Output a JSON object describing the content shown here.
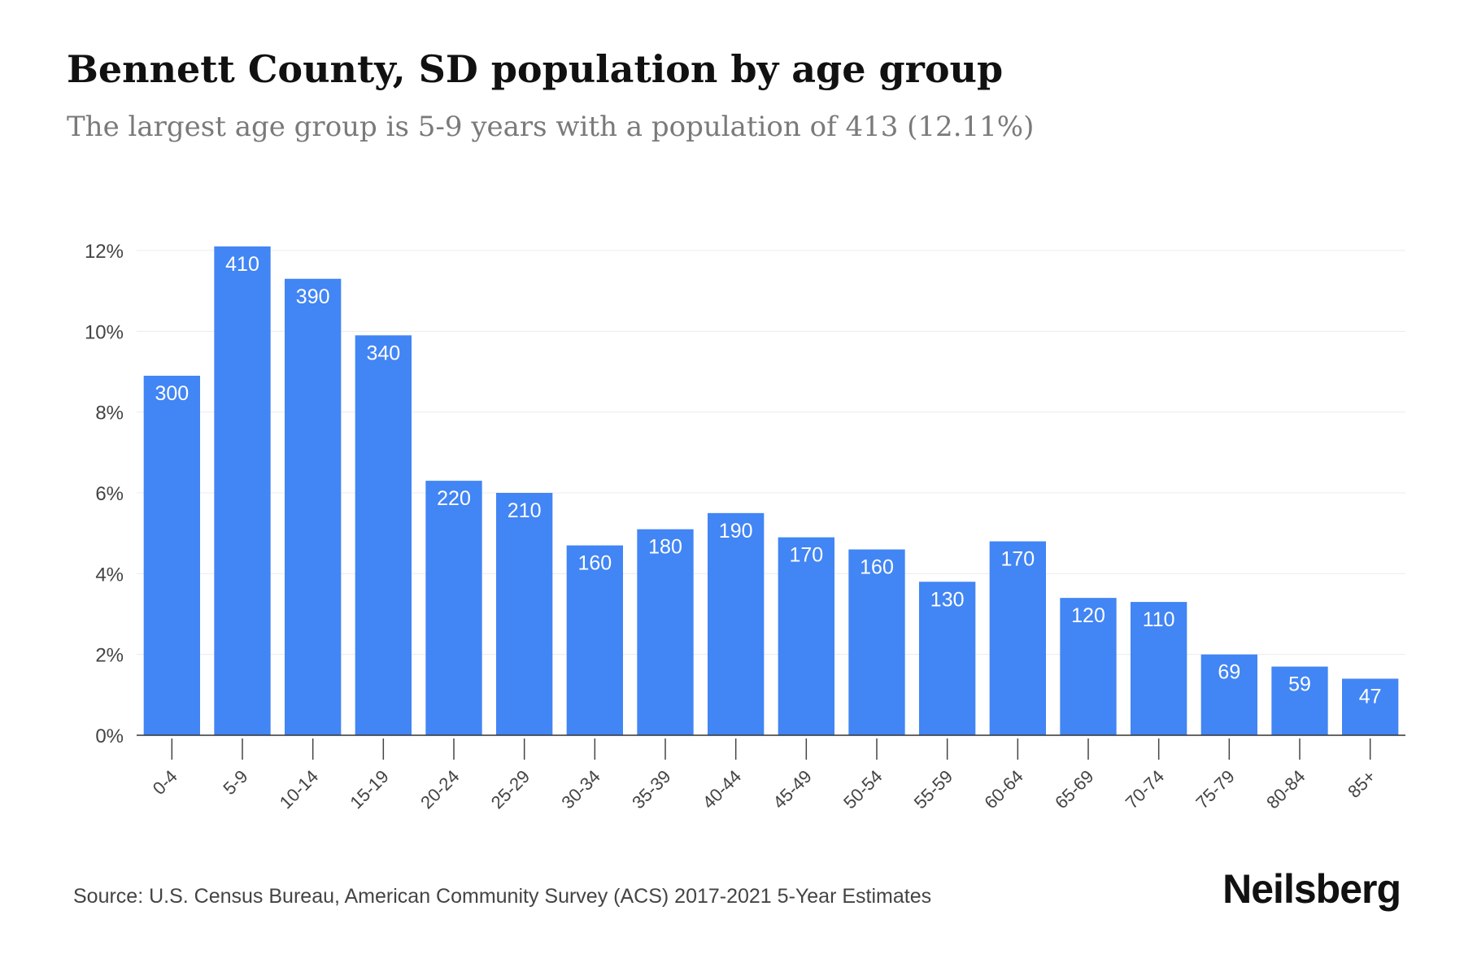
{
  "chart_data": {
    "type": "bar",
    "title": "Bennett County, SD population by age group",
    "subtitle": "The largest age group is 5-9 years with a population of 413 (12.11%)",
    "xlabel": "",
    "ylabel": "",
    "categories": [
      "0-4",
      "5-9",
      "10-14",
      "15-19",
      "20-24",
      "25-29",
      "30-34",
      "35-39",
      "40-44",
      "45-49",
      "50-54",
      "55-59",
      "60-64",
      "65-69",
      "70-74",
      "75-79",
      "80-84",
      "85+"
    ],
    "values_percent": [
      8.9,
      12.1,
      11.3,
      9.9,
      6.3,
      6.0,
      4.7,
      5.1,
      5.5,
      4.9,
      4.6,
      3.8,
      4.8,
      3.4,
      3.3,
      2.0,
      1.7,
      1.4
    ],
    "data_labels": [
      "300",
      "410",
      "390",
      "340",
      "220",
      "210",
      "160",
      "180",
      "190",
      "170",
      "160",
      "130",
      "170",
      "120",
      "110",
      "69",
      "59",
      "47"
    ],
    "ylim": [
      0,
      12
    ],
    "yticks": [
      0,
      2,
      4,
      6,
      8,
      10,
      12
    ],
    "ytick_labels": [
      "0%",
      "2%",
      "4%",
      "6%",
      "8%",
      "10%",
      "12%"
    ],
    "grid": true,
    "legend": "none",
    "bar_color": "#4285f4"
  },
  "footer": {
    "source": "Source: U.S. Census Bureau, American Community Survey (ACS) 2017-2021 5-Year Estimates",
    "brand": "Neilsberg"
  }
}
